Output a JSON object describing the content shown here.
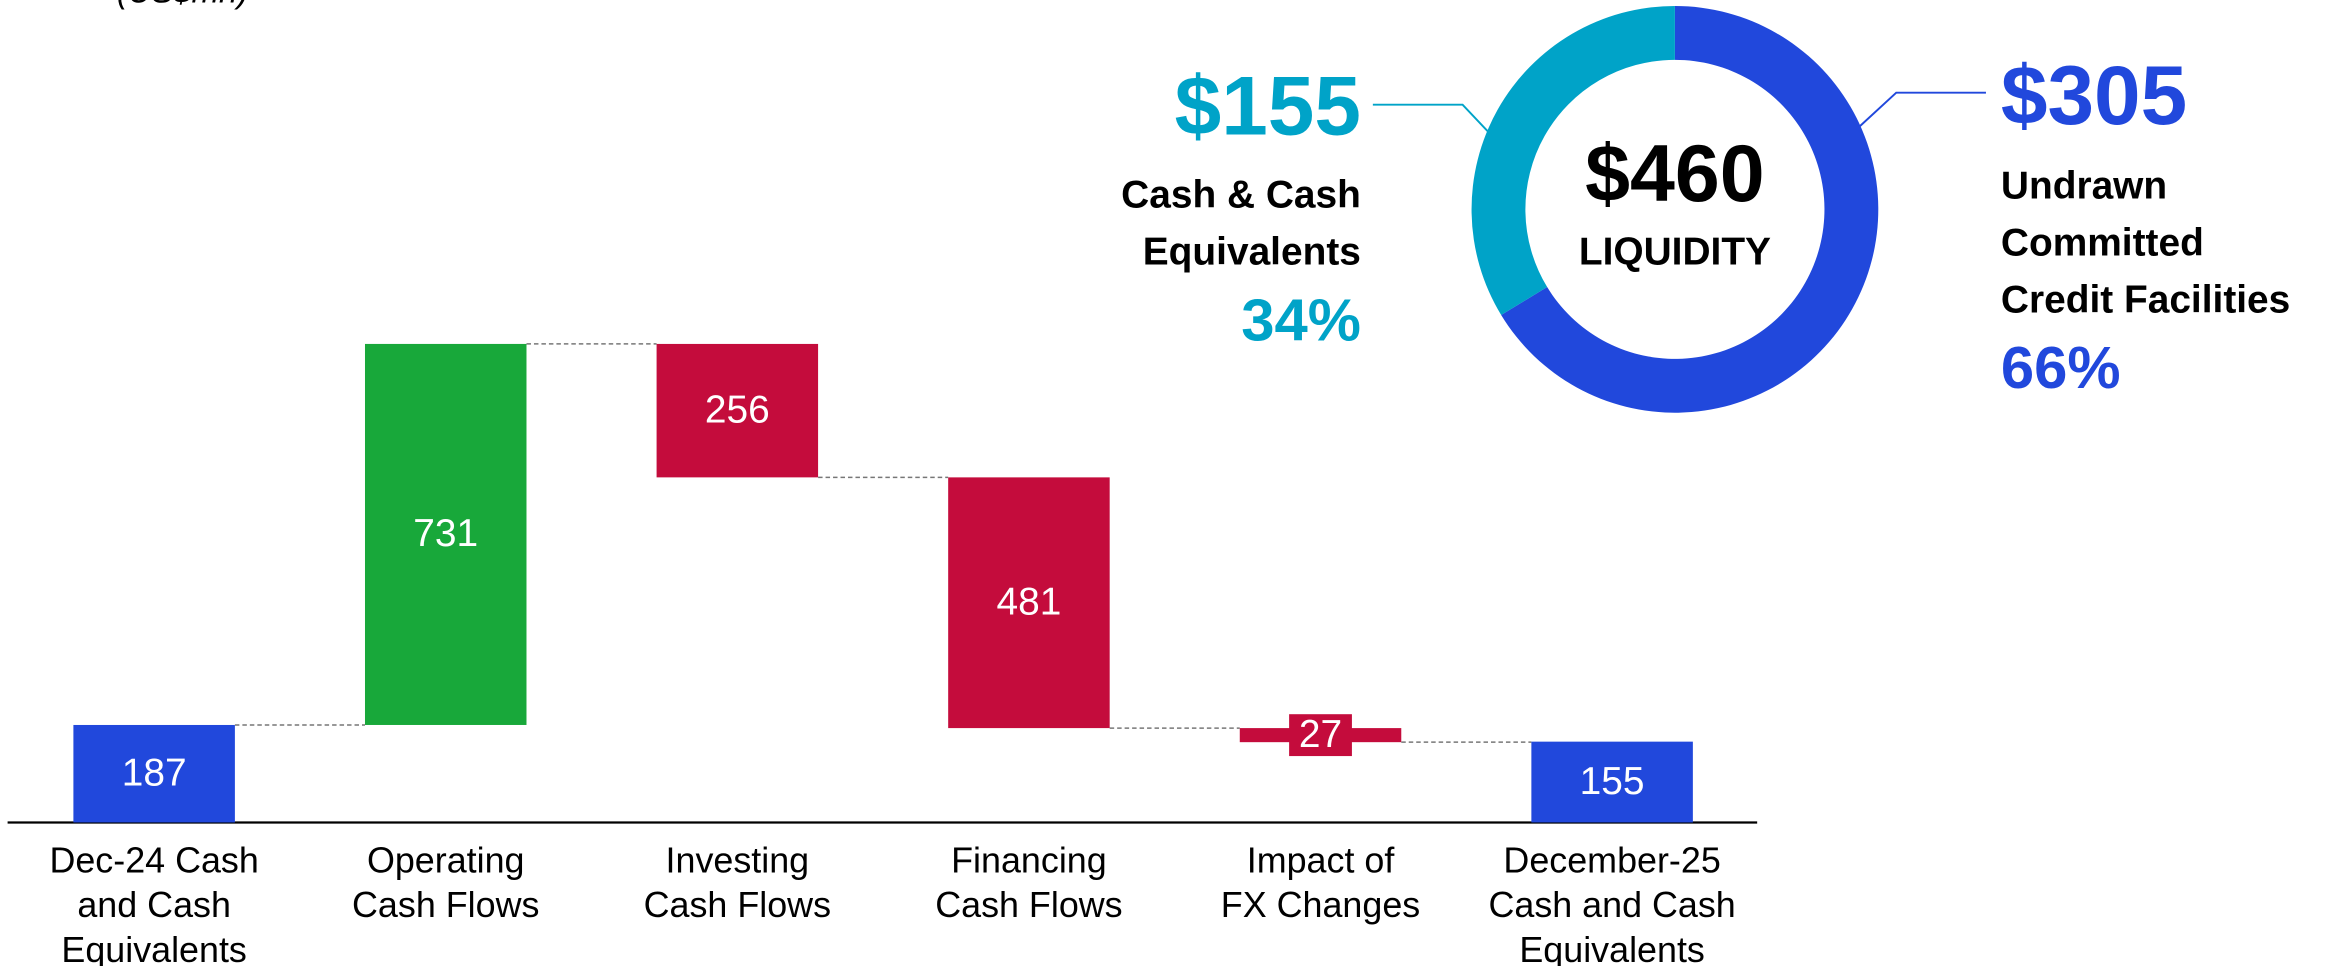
{
  "chart_data": [
    {
      "type": "waterfall",
      "subtitle": "(US$mn)",
      "categories": [
        [
          "Dec-24 Cash",
          "and Cash",
          "Equivalents"
        ],
        [
          "Operating",
          "Cash Flows"
        ],
        [
          "Investing",
          "Cash Flows"
        ],
        [
          "Financing",
          "Cash Flows"
        ],
        [
          "Impact of",
          "FX Changes"
        ],
        [
          "December-25",
          "Cash and Cash",
          "Equivalents"
        ]
      ],
      "values": [
        187,
        731,
        -256,
        -481,
        -27,
        155
      ],
      "value_labels": [
        "187",
        "731",
        "256",
        "481",
        "27",
        "155"
      ],
      "measures": [
        "absolute",
        "relative",
        "relative",
        "relative",
        "relative",
        "total"
      ],
      "colors": {
        "total": "#2148dc",
        "increase": "#18a83a",
        "decrease": "#c40c3c"
      }
    },
    {
      "type": "donut",
      "center_value_label": "$460",
      "center_label": "LIQUIDITY",
      "categories": [
        [
          "Cash & Cash",
          "Equivalents"
        ],
        [
          "Undrawn",
          "Committed",
          "Credit Facilities"
        ]
      ],
      "values": [
        155,
        305
      ],
      "value_labels": [
        "$155",
        "$305"
      ],
      "share_labels": [
        "34%",
        "66%"
      ],
      "colors": [
        "#00a3c8",
        "#2148dc"
      ]
    }
  ]
}
